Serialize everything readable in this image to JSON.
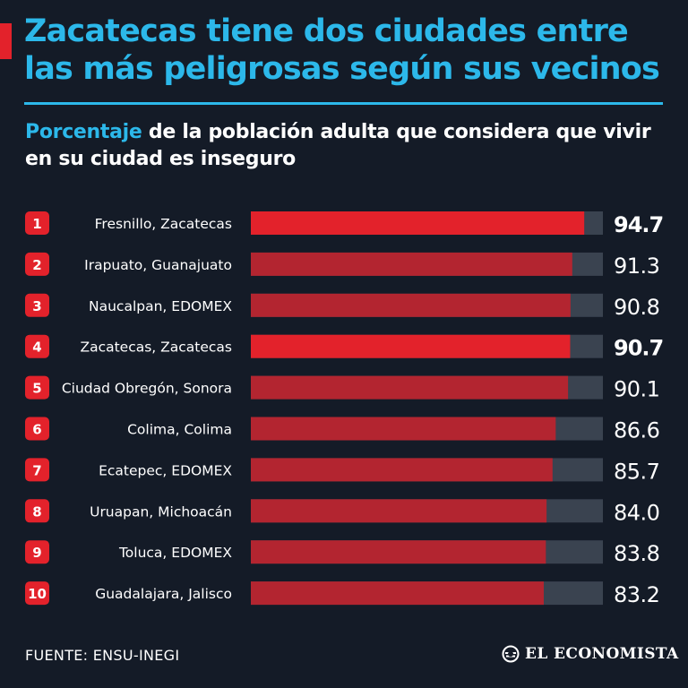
{
  "header": {
    "title": "Zacatecas tiene dos ciudades entre las más peligrosas según sus vecinos",
    "subtitle_highlight": "Porcentaje",
    "subtitle_rest": " de la población adulta que considera que vivir en su ciudad es inseguro"
  },
  "footer": {
    "source": "FUENTE: ENSU-INEGI",
    "brand": "EL ECONOMISTA"
  },
  "colors": {
    "background": "#141b27",
    "accent_blue": "#2cb8ea",
    "highlight_red": "#e3222b",
    "bar_red": "#b32530",
    "bar_track": "#3a4350",
    "badge_red": "#e3222b"
  },
  "chart_data": {
    "type": "bar",
    "orientation": "horizontal",
    "title": "Zacatecas tiene dos ciudades entre las más peligrosas según sus vecinos",
    "xlabel": "",
    "ylabel": "",
    "xlim": [
      0,
      100
    ],
    "ranks": [
      "1",
      "2",
      "3",
      "4",
      "5",
      "6",
      "7",
      "8",
      "9",
      "10"
    ],
    "categories": [
      "Fresnillo, Zacatecas",
      "Irapuato, Guanajuato",
      "Naucalpan, EDOMEX",
      "Zacatecas, Zacatecas",
      "Ciudad Obregón, Sonora",
      "Colima, Colima",
      "Ecatepec, EDOMEX",
      "Uruapan, Michoacán",
      "Toluca, EDOMEX",
      "Guadalajara, Jalisco"
    ],
    "values": [
      94.7,
      91.3,
      90.8,
      90.7,
      90.1,
      86.6,
      85.7,
      84.0,
      83.8,
      83.2
    ],
    "value_labels": [
      "94.7",
      "91.3",
      "90.8",
      "90.7",
      "90.1",
      "86.6",
      "85.7",
      "84.0",
      "83.8",
      "83.2"
    ],
    "highlighted": [
      true,
      false,
      false,
      true,
      false,
      false,
      false,
      false,
      false,
      false
    ],
    "grid": false,
    "legend": "none"
  }
}
